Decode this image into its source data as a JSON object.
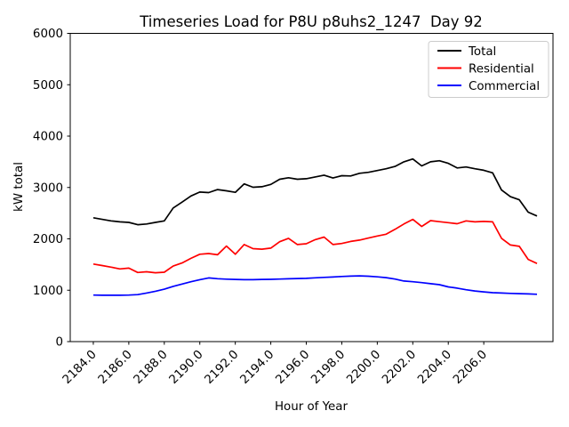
{
  "chart_data": {
    "type": "line",
    "title": "Timeseries Load for P8U p8uhs2_1247  Day 92",
    "xlabel": "Hour of Year",
    "ylabel": "kW total",
    "xlim": [
      2182.7,
      2209.9
    ],
    "ylim": [
      0,
      6000
    ],
    "grid": false,
    "legend_position": "upper right",
    "x_tick_values": [
      2184,
      2186,
      2188,
      2190,
      2192,
      2194,
      2196,
      2198,
      2200,
      2202,
      2204,
      2206
    ],
    "x_tick_labels": [
      "2184.0",
      "2186.0",
      "2188.0",
      "2190.0",
      "2192.0",
      "2194.0",
      "2196.0",
      "2198.0",
      "2200.0",
      "2202.0",
      "2204.0",
      "2206.0"
    ],
    "y_tick_values": [
      0,
      1000,
      2000,
      3000,
      4000,
      5000,
      6000
    ],
    "y_tick_labels": [
      "0",
      "1000",
      "2000",
      "3000",
      "4000",
      "5000",
      "6000"
    ],
    "x": [
      2184.0,
      2184.5,
      2185.0,
      2185.5,
      2186.0,
      2186.5,
      2187.0,
      2187.5,
      2188.0,
      2188.5,
      2189.0,
      2189.5,
      2190.0,
      2190.5,
      2191.0,
      2191.5,
      2192.0,
      2192.5,
      2193.0,
      2193.5,
      2194.0,
      2194.5,
      2195.0,
      2195.5,
      2196.0,
      2196.5,
      2197.0,
      2197.5,
      2198.0,
      2198.5,
      2199.0,
      2199.5,
      2200.0,
      2200.5,
      2201.0,
      2201.5,
      2202.0,
      2202.5,
      2203.0,
      2203.5,
      2204.0,
      2204.5,
      2205.0,
      2205.5,
      2206.0,
      2206.5,
      2207.0,
      2207.5,
      2208.0,
      2208.5,
      2209.0
    ],
    "series": [
      {
        "name": "Total",
        "color": "#000000",
        "values": [
          2410,
          2380,
          2350,
          2330,
          2320,
          2275,
          2290,
          2320,
          2350,
          2600,
          2715,
          2835,
          2910,
          2900,
          2960,
          2935,
          2905,
          3070,
          3005,
          3015,
          3060,
          3160,
          3190,
          3160,
          3170,
          3205,
          3240,
          3185,
          3230,
          3225,
          3277,
          3296,
          3330,
          3365,
          3410,
          3500,
          3555,
          3420,
          3500,
          3520,
          3470,
          3380,
          3400,
          3365,
          3335,
          3285,
          2950,
          2820,
          2760,
          2520,
          2445
        ]
      },
      {
        "name": "Residential",
        "color": "#ff0000",
        "values": [
          1510,
          1480,
          1450,
          1415,
          1430,
          1345,
          1360,
          1340,
          1350,
          1470,
          1530,
          1620,
          1700,
          1715,
          1690,
          1860,
          1700,
          1890,
          1810,
          1800,
          1820,
          1945,
          2010,
          1890,
          1905,
          1985,
          2035,
          1890,
          1910,
          1950,
          1975,
          2015,
          2055,
          2090,
          2185,
          2290,
          2380,
          2240,
          2355,
          2335,
          2315,
          2295,
          2350,
          2330,
          2340,
          2330,
          2010,
          1880,
          1855,
          1600,
          1520
        ]
      },
      {
        "name": "Commercial",
        "color": "#0000ff",
        "values": [
          905,
          903,
          902,
          902,
          905,
          915,
          945,
          980,
          1020,
          1075,
          1120,
          1165,
          1205,
          1240,
          1225,
          1215,
          1210,
          1205,
          1205,
          1210,
          1212,
          1218,
          1222,
          1228,
          1232,
          1242,
          1250,
          1258,
          1268,
          1275,
          1280,
          1272,
          1260,
          1245,
          1218,
          1180,
          1165,
          1148,
          1128,
          1108,
          1065,
          1040,
          1010,
          985,
          968,
          952,
          945,
          938,
          933,
          928,
          922
        ]
      }
    ]
  }
}
